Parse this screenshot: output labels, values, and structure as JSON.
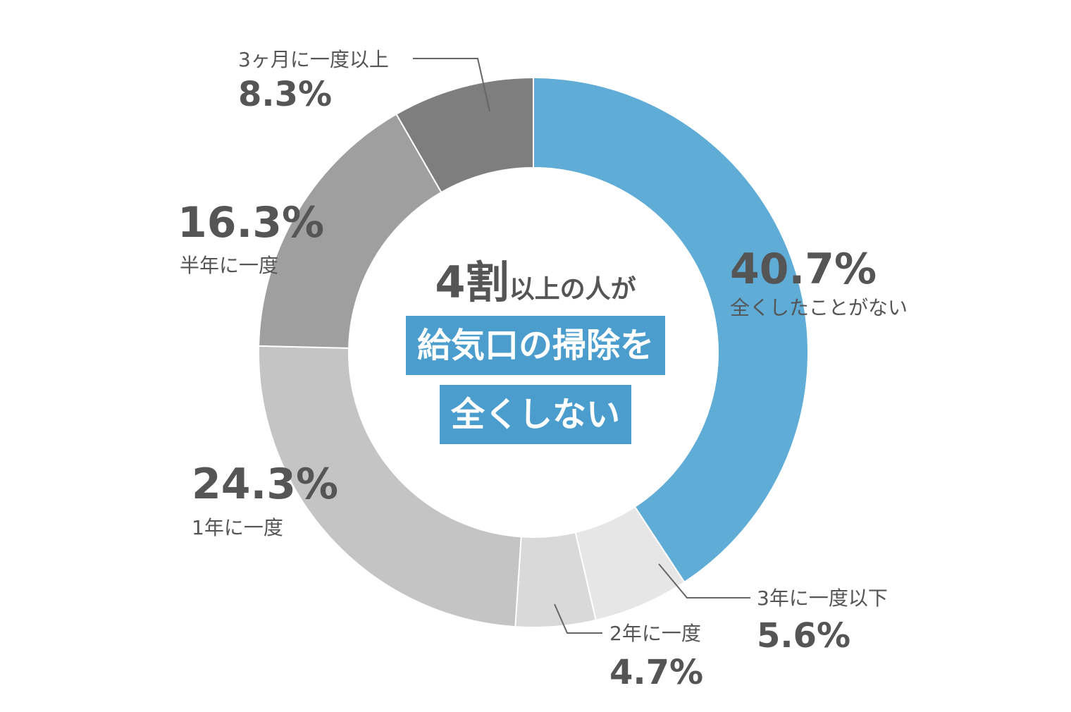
{
  "chart_data": {
    "type": "pie",
    "donut": true,
    "slices": [
      {
        "label": "全くしたことがない",
        "value": 40.7,
        "display": "40.7%",
        "color": "#5facd6"
      },
      {
        "label": "3年に一度以下",
        "value": 5.6,
        "display": "5.6%",
        "color": "#e6e6e6"
      },
      {
        "label": "2年に一度",
        "value": 4.7,
        "display": "4.7%",
        "color": "#d9d9d9"
      },
      {
        "label": "1年に一度",
        "value": 24.3,
        "display": "24.3%",
        "color": "#c4c4c4"
      },
      {
        "label": "半年に一度",
        "value": 16.3,
        "display": "16.3%",
        "color": "#9f9f9f"
      },
      {
        "label": "3ヶ月に一度以上",
        "value": 8.3,
        "display": "8.3%",
        "color": "#7f7e7f"
      }
    ]
  },
  "center": {
    "headline_big": "4割",
    "headline_small": "以上の人が",
    "box_line1": "給気口の掃除を",
    "box_line2": "全くしない"
  }
}
